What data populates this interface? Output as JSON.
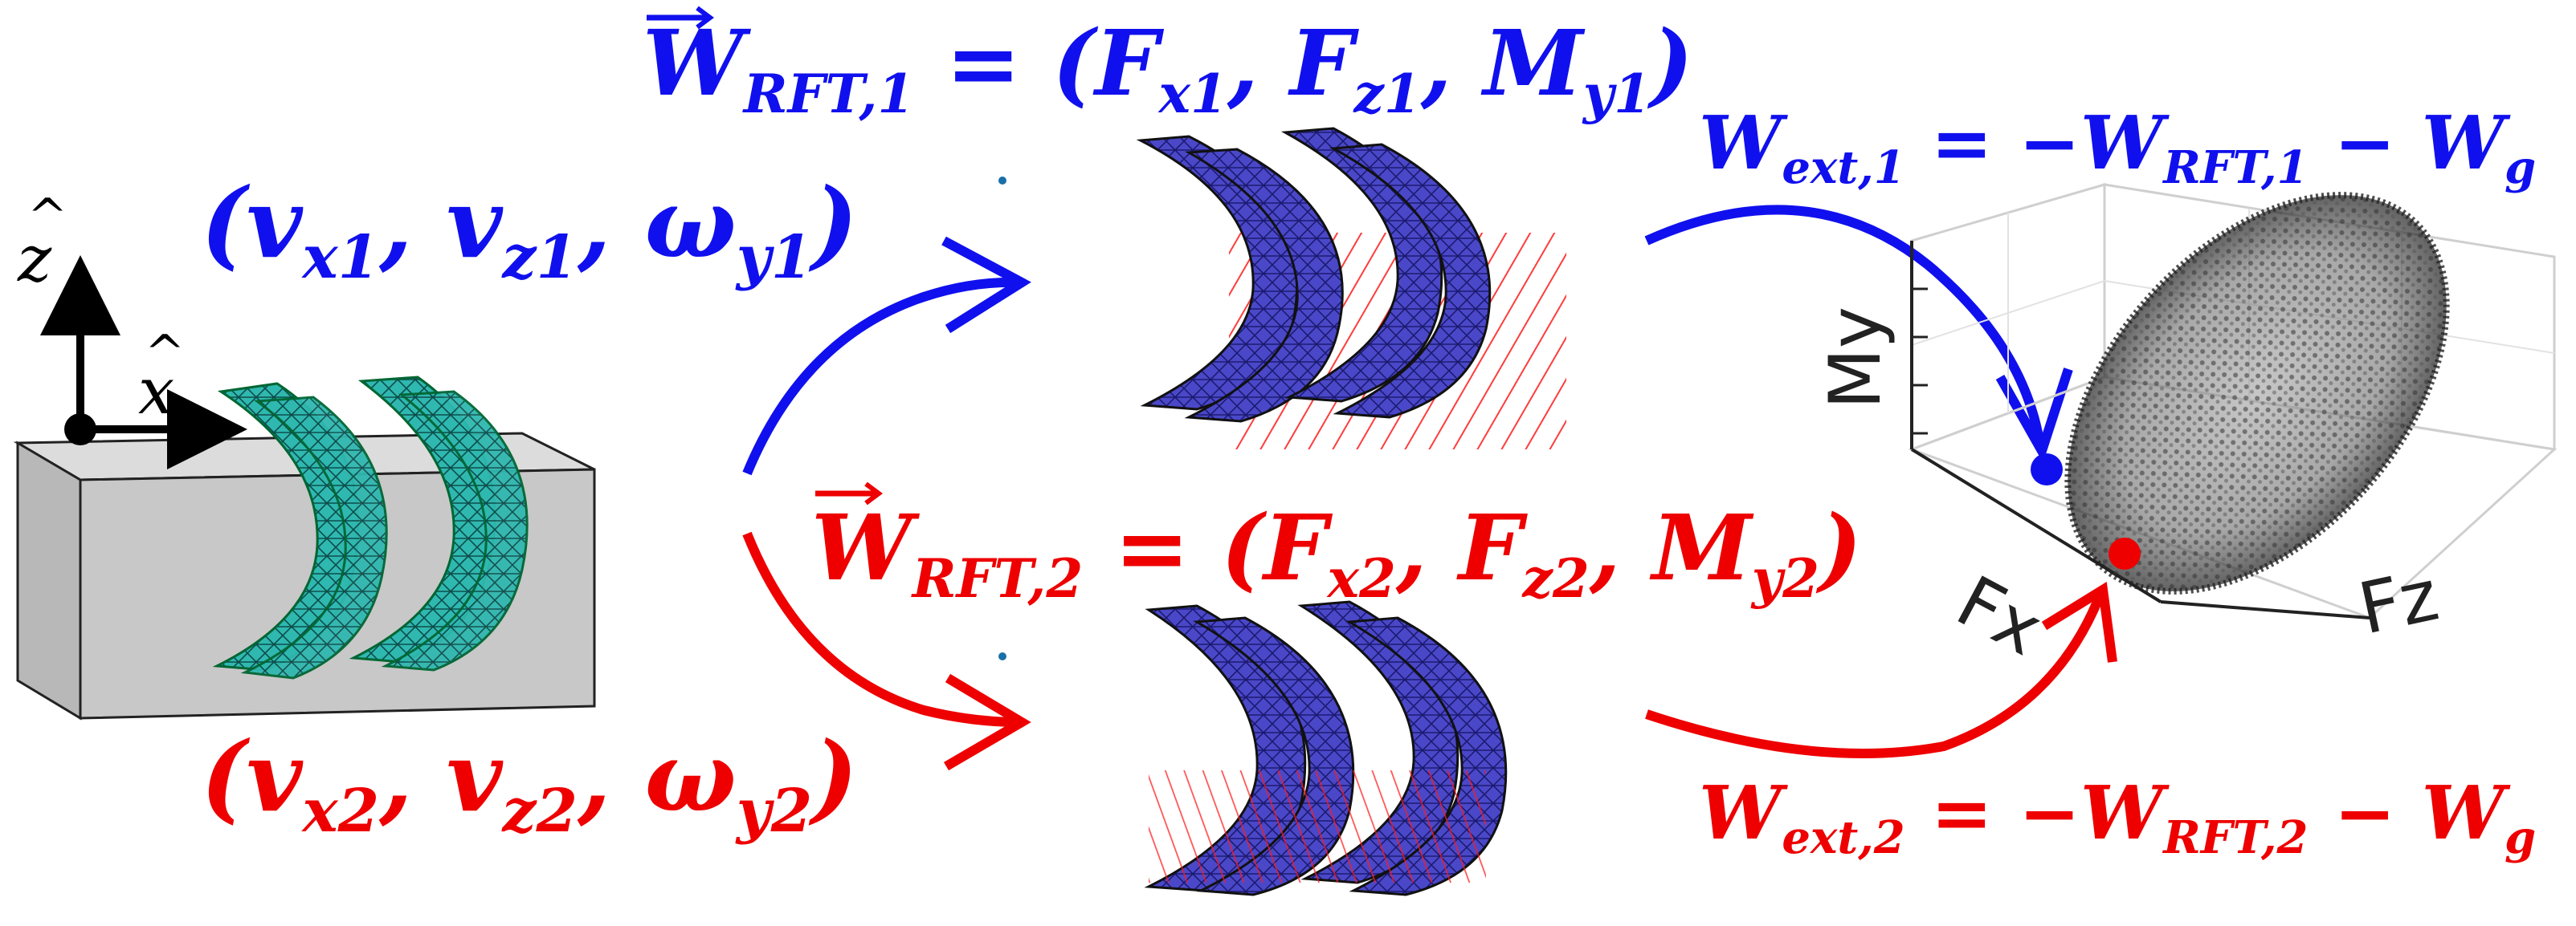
{
  "equations": {
    "w_rft_1": {
      "W": "W",
      "sub": "RFT,1",
      "rest": " = (F",
      "fx_sub": "x1",
      "c1": ", F",
      "fz_sub": "z1",
      "c2": ", M",
      "my_sub": "y1",
      "close": ")"
    },
    "w_rft_2": {
      "W": "W",
      "sub": "RFT,2",
      "rest": " = (F",
      "fx_sub": "x2",
      "c1": ", F",
      "fz_sub": "z2",
      "c2": ", M",
      "my_sub": "y2",
      "close": ")"
    },
    "w_ext_1": {
      "W": "W",
      "sub": "ext,1",
      "mid": " = −",
      "W2": "W",
      "sub2": "RFT,1",
      "minus": " − ",
      "W3": "W",
      "sub3": "g"
    },
    "w_ext_2": {
      "W": "W",
      "sub": "ext,2",
      "mid": " = −",
      "W2": "W",
      "sub2": "RFT,2",
      "minus": " − ",
      "W3": "W",
      "sub3": "g"
    },
    "vel_1": {
      "open": "(",
      "v1": "v",
      "v1_sub": "x1",
      "c1": ", ",
      "v2": "v",
      "v2_sub": "z1",
      "c2": ", ",
      "w": "ω",
      "w_sub": "y1",
      "close": ")"
    },
    "vel_2": {
      "open": "(",
      "v1": "v",
      "v1_sub": "x2",
      "c1": ", ",
      "v2": "v",
      "v2_sub": "z2",
      "c2": ", ",
      "w": "ω",
      "w_sub": "y2",
      "close": ")"
    }
  },
  "frame": {
    "z_label": "z",
    "x_label": "x"
  },
  "plot3d": {
    "axis_my": "My",
    "axis_fx": "Fx",
    "axis_fz": "Fz"
  },
  "colors": {
    "blue": "#1010ee",
    "red": "#ee0000",
    "teal": "#2fb8b0",
    "purple": "#4a48c8",
    "box": "#c8c8c8"
  }
}
